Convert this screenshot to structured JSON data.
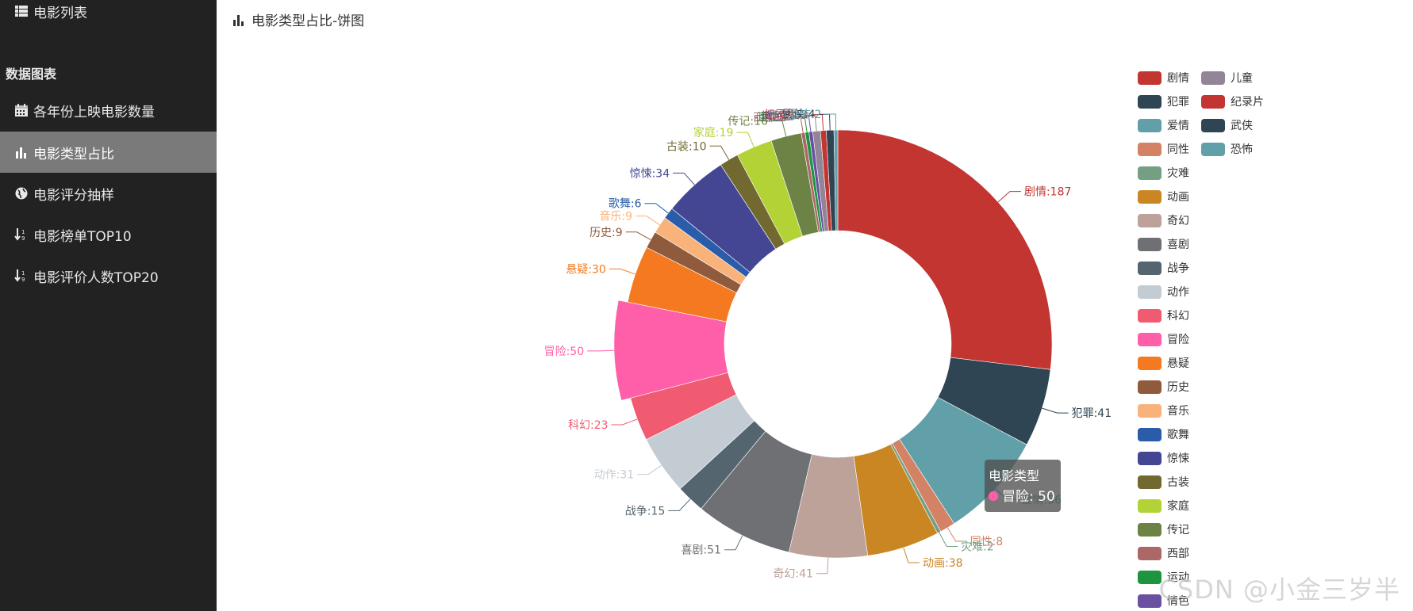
{
  "sidebar": {
    "top_item": "电影列表",
    "section": "数据图表",
    "items": [
      {
        "label": "各年份上映电影数量",
        "icon": "calendar-icon"
      },
      {
        "label": "电影类型占比",
        "icon": "bar-chart-icon",
        "active": true
      },
      {
        "label": "电影评分抽样",
        "icon": "globe-icon"
      },
      {
        "label": "电影榜单TOP10",
        "icon": "sort-icon"
      },
      {
        "label": "电影评价人数TOP20",
        "icon": "sort-icon"
      }
    ]
  },
  "header": {
    "title": "电影类型占比-饼图"
  },
  "tooltip": {
    "title": "电影类型",
    "item": "冒险: 50",
    "color": "#ff5fa8"
  },
  "watermark": "CSDN @小金三岁半",
  "chart_data": {
    "type": "pie",
    "variant": "donut",
    "series_name": "电影类型",
    "emphasized": "冒险",
    "legend_placement": "right",
    "slices": [
      {
        "name": "剧情",
        "value": 187,
        "color": "#c23531"
      },
      {
        "name": "犯罪",
        "value": 41,
        "color": "#2f4554"
      },
      {
        "name": "爱情",
        "value": 56,
        "color": "#61a0a8"
      },
      {
        "name": "同性",
        "value": 8,
        "color": "#d48265"
      },
      {
        "name": "灾难",
        "value": 2,
        "color": "#749f83"
      },
      {
        "name": "动画",
        "value": 38,
        "color": "#ca8622"
      },
      {
        "name": "奇幻",
        "value": 41,
        "color": "#bda29a"
      },
      {
        "name": "喜剧",
        "value": 51,
        "color": "#6e7074"
      },
      {
        "name": "战争",
        "value": 15,
        "color": "#546570"
      },
      {
        "name": "动作",
        "value": 31,
        "color": "#c4ccd3"
      },
      {
        "name": "科幻",
        "value": 23,
        "color": "#f05b72"
      },
      {
        "name": "冒险",
        "value": 50,
        "color": "#ff5fa8"
      },
      {
        "name": "悬疑",
        "value": 30,
        "color": "#f47920"
      },
      {
        "name": "历史",
        "value": 9,
        "color": "#905a3d"
      },
      {
        "name": "音乐",
        "value": 9,
        "color": "#fab27b"
      },
      {
        "name": "歌舞",
        "value": 6,
        "color": "#2a5caa"
      },
      {
        "name": "惊悚",
        "value": 34,
        "color": "#444693"
      },
      {
        "name": "古装",
        "value": 10,
        "color": "#726930"
      },
      {
        "name": "家庭",
        "value": 19,
        "color": "#b2d235"
      },
      {
        "name": "传记",
        "value": 16,
        "color": "#6d8346"
      },
      {
        "name": "西部",
        "value": 2,
        "color": "#ac6767"
      },
      {
        "name": "运动",
        "value": 2,
        "color": "#1d953f"
      },
      {
        "name": "情色",
        "value": 2,
        "color": "#6950a1"
      },
      {
        "name": "儿童",
        "value": 4,
        "color": "#918597"
      },
      {
        "name": "纪录片",
        "value": 3,
        "color": "#c23531"
      },
      {
        "name": "武侠",
        "value": 4,
        "color": "#2f4554"
      },
      {
        "name": "恐怖",
        "value": 2,
        "color": "#61a0a8"
      }
    ]
  }
}
